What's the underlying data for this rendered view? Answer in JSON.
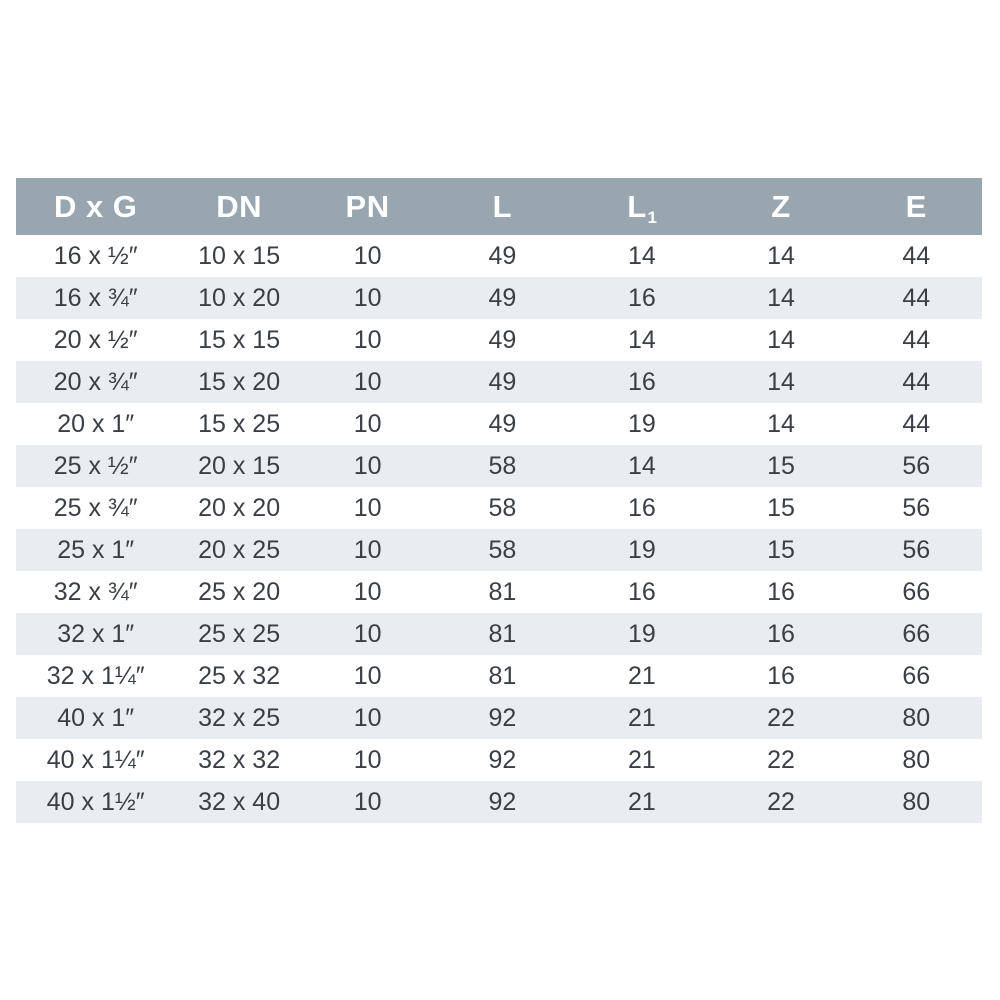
{
  "table": {
    "columns": [
      {
        "key": "dxg",
        "label": "D x G"
      },
      {
        "key": "dn",
        "label": "DN"
      },
      {
        "key": "pn",
        "label": "PN"
      },
      {
        "key": "l",
        "label": "L"
      },
      {
        "key": "l1",
        "label": "L",
        "sub": "1"
      },
      {
        "key": "z",
        "label": "Z"
      },
      {
        "key": "e",
        "label": "E"
      }
    ],
    "rows": [
      [
        "16 x ½″",
        "10 x 15",
        "10",
        "49",
        "14",
        "14",
        "44"
      ],
      [
        "16 x ¾″",
        "10 x 20",
        "10",
        "49",
        "16",
        "14",
        "44"
      ],
      [
        "20 x ½″",
        "15 x 15",
        "10",
        "49",
        "14",
        "14",
        "44"
      ],
      [
        "20 x ¾″",
        "15 x 20",
        "10",
        "49",
        "16",
        "14",
        "44"
      ],
      [
        "20 x 1″",
        "15 x 25",
        "10",
        "49",
        "19",
        "14",
        "44"
      ],
      [
        "25 x ½″",
        "20 x 15",
        "10",
        "58",
        "14",
        "15",
        "56"
      ],
      [
        "25 x ¾″",
        "20 x 20",
        "10",
        "58",
        "16",
        "15",
        "56"
      ],
      [
        "25 x 1″",
        "20 x 25",
        "10",
        "58",
        "19",
        "15",
        "56"
      ],
      [
        "32 x ¾″",
        "25 x 20",
        "10",
        "81",
        "16",
        "16",
        "66"
      ],
      [
        "32 x 1″",
        "25 x 25",
        "10",
        "81",
        "19",
        "16",
        "66"
      ],
      [
        "32 x 1¼″",
        "25 x 32",
        "10",
        "81",
        "21",
        "16",
        "66"
      ],
      [
        "40 x 1″",
        "32 x 25",
        "10",
        "92",
        "21",
        "22",
        "80"
      ],
      [
        "40 x 1¼″",
        "32 x 32",
        "10",
        "92",
        "21",
        "22",
        "80"
      ],
      [
        "40 x 1½″",
        "32 x 40",
        "10",
        "92",
        "21",
        "22",
        "80"
      ]
    ],
    "colors": {
      "header_bg": "#99A5AF",
      "header_text": "#FFFFFF",
      "row_alt_bg": "#E9EDF2",
      "row_text": "#3A3F46",
      "page_bg": "#FFFFFF"
    }
  }
}
